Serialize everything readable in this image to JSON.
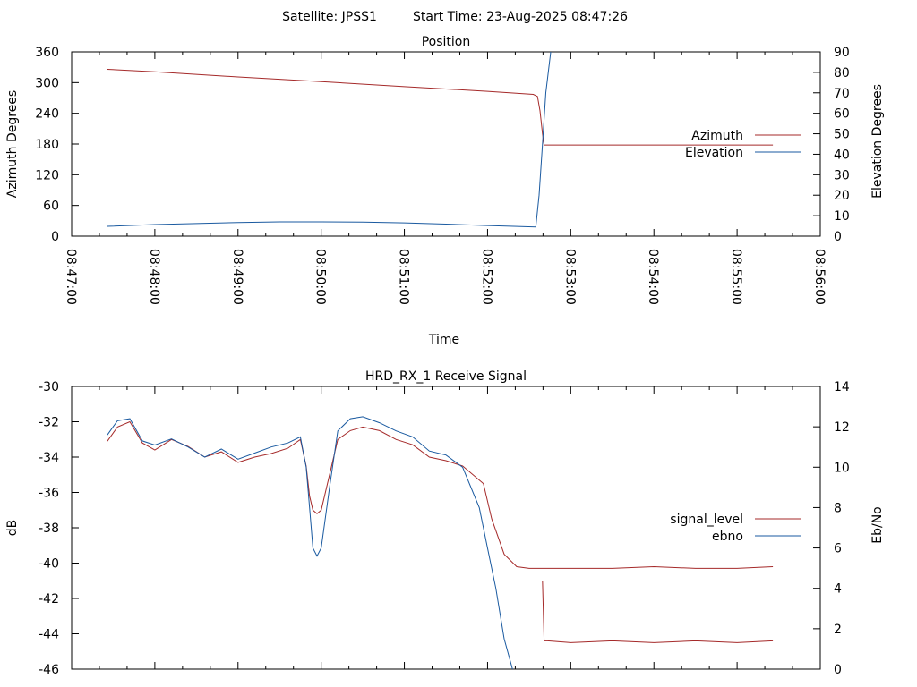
{
  "header": {
    "satellite_text": "Satellite: JPSS1",
    "start_time_text": "Start Time: 23-Aug-2025 08:47:26"
  },
  "chart_data": [
    {
      "type": "line",
      "title": "Position",
      "xlabel": "Time",
      "ylabel_left": "Azimuth Degrees",
      "ylabel_right": "Elevation Degrees",
      "x_ticks": [
        "08:47:00",
        "08:48:00",
        "08:49:00",
        "08:50:00",
        "08:51:00",
        "08:52:00",
        "08:53:00",
        "08:54:00",
        "08:55:00",
        "08:56:00"
      ],
      "x_range_minutes": [
        0,
        9
      ],
      "ylim_left": [
        0,
        360
      ],
      "yticks_left": [
        "0",
        "60",
        "120",
        "180",
        "240",
        "300",
        "360"
      ],
      "ylim_right": [
        0,
        90
      ],
      "yticks_right": [
        "0",
        "10",
        "20",
        "30",
        "40",
        "50",
        "60",
        "70",
        "80",
        "90"
      ],
      "legend_position": "right",
      "grid": false,
      "series": [
        {
          "name": "Azimuth",
          "axis": "left",
          "color": "#a52a2a",
          "x": [
            0.43,
            1.0,
            2.0,
            3.0,
            4.0,
            5.0,
            5.55,
            5.6,
            5.63,
            5.66,
            5.68,
            6.0,
            7.0,
            8.0,
            8.43
          ],
          "y": [
            326,
            321,
            311,
            302,
            292,
            283,
            277,
            273,
            245,
            200,
            178,
            178,
            178,
            178,
            178
          ]
        },
        {
          "name": "Elevation",
          "axis": "right",
          "color": "#1a5aa0",
          "x": [
            0.43,
            1.0,
            2.0,
            2.5,
            3.0,
            3.5,
            4.0,
            4.5,
            5.0,
            5.58,
            5.62,
            5.66,
            5.7,
            5.76
          ],
          "y": [
            4.8,
            5.7,
            6.7,
            7.0,
            7.0,
            6.9,
            6.5,
            5.9,
            5.2,
            4.5,
            20,
            45,
            70,
            90
          ]
        }
      ]
    },
    {
      "type": "line",
      "title": "HRD_RX_1 Receive Signal",
      "xlabel": "",
      "ylabel_left": "dB",
      "ylabel_right": "Eb/No",
      "x_range_minutes": [
        0,
        9
      ],
      "ylim_left": [
        -46,
        -30
      ],
      "yticks_left": [
        "-30",
        "-32",
        "-34",
        "-36",
        "-38",
        "-40",
        "-42",
        "-44",
        "-46"
      ],
      "ylim_right": [
        0,
        14
      ],
      "yticks_right": [
        "0",
        "2",
        "4",
        "6",
        "8",
        "10",
        "12",
        "14"
      ],
      "legend_position": "right",
      "grid": false,
      "series": [
        {
          "name": "signal_level",
          "axis": "left",
          "color": "#a52a2a",
          "x": [
            0.43,
            0.55,
            0.7,
            0.85,
            1.0,
            1.2,
            1.4,
            1.6,
            1.8,
            2.0,
            2.2,
            2.4,
            2.6,
            2.75,
            2.82,
            2.86,
            2.9,
            2.95,
            3.0,
            3.1,
            3.2,
            3.35,
            3.5,
            3.7,
            3.9,
            4.1,
            4.3,
            4.5,
            4.7,
            4.95,
            5.05,
            5.2,
            5.35,
            5.5,
            5.6,
            5.65,
            5.67,
            5.7,
            6.0,
            6.5,
            7.0,
            7.5,
            8.0,
            8.43
          ],
          "y": [
            -33.1,
            -32.3,
            -32.0,
            -33.2,
            -33.6,
            -33.0,
            -33.4,
            -34.0,
            -33.7,
            -34.3,
            -34.0,
            -33.8,
            -33.5,
            -33.0,
            -34.5,
            -36.2,
            -37.0,
            -37.2,
            -37.0,
            -35.0,
            -33.0,
            -32.5,
            -32.3,
            -32.5,
            -33.0,
            -33.3,
            -34.0,
            -34.2,
            -34.5,
            -35.5,
            -37.5,
            -39.5,
            -40.2,
            -40.3,
            -40.3,
            -40.3,
            -40.3,
            -40.3,
            -40.3,
            -40.3,
            -40.2,
            -40.3,
            -40.3,
            -40.2
          ],
          "tail": {
            "x": [
              5.66,
              5.68,
              5.72,
              6.0,
              6.5,
              7.0,
              7.5,
              8.0,
              8.43
            ],
            "y": [
              -41.0,
              -44.4,
              -44.4,
              -44.5,
              -44.4,
              -44.5,
              -44.4,
              -44.5,
              -44.4
            ]
          }
        },
        {
          "name": "ebno",
          "axis": "right",
          "color": "#1a5aa0",
          "x": [
            0.43,
            0.55,
            0.7,
            0.85,
            1.0,
            1.2,
            1.4,
            1.6,
            1.8,
            2.0,
            2.2,
            2.4,
            2.6,
            2.75,
            2.82,
            2.86,
            2.9,
            2.95,
            3.0,
            3.1,
            3.2,
            3.35,
            3.5,
            3.7,
            3.9,
            4.1,
            4.3,
            4.5,
            4.7,
            4.9,
            5.0,
            5.1,
            5.2,
            5.3
          ],
          "y": [
            11.6,
            12.3,
            12.4,
            11.3,
            11.1,
            11.4,
            11.0,
            10.5,
            10.9,
            10.4,
            10.7,
            11.0,
            11.2,
            11.5,
            10.0,
            8.0,
            6.0,
            5.6,
            6.0,
            9.0,
            11.8,
            12.4,
            12.5,
            12.2,
            11.8,
            11.5,
            10.8,
            10.6,
            10.0,
            8.0,
            6.0,
            4.0,
            1.5,
            0.0
          ]
        }
      ]
    }
  ]
}
